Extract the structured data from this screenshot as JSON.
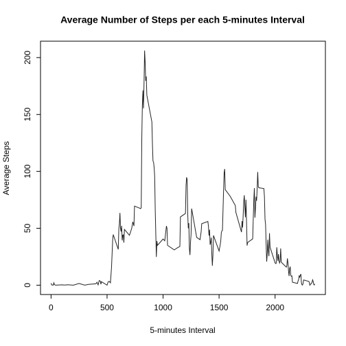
{
  "chart_data": {
    "type": "line",
    "title": "Average Number of Steps per each 5-minutes Interval",
    "xlabel": "5-minutes Interval",
    "ylabel": "Average Steps",
    "color": "#222222",
    "x": [
      0,
      5,
      10,
      15,
      20,
      25,
      30,
      40,
      100,
      110,
      135,
      145,
      200,
      250,
      300,
      335,
      400,
      410,
      420,
      430,
      440,
      445,
      450,
      500,
      505,
      510,
      520,
      530,
      540,
      550,
      555,
      600,
      605,
      610,
      615,
      620,
      625,
      630,
      635,
      640,
      645,
      650,
      655,
      700,
      720,
      730,
      740,
      745,
      800,
      805,
      810,
      815,
      820,
      825,
      830,
      835,
      840,
      845,
      850,
      855,
      900,
      905,
      910,
      915,
      920,
      925,
      930,
      935,
      940,
      945,
      950,
      1000,
      1015,
      1030,
      1035,
      1040,
      1100,
      1130,
      1150,
      1155,
      1200,
      1205,
      1210,
      1215,
      1220,
      1225,
      1230,
      1235,
      1240,
      1245,
      1250,
      1255,
      1300,
      1330,
      1340,
      1345,
      1400,
      1405,
      1410,
      1415,
      1420,
      1425,
      1430,
      1435,
      1440,
      1445,
      1450,
      1500,
      1510,
      1515,
      1520,
      1525,
      1530,
      1535,
      1540,
      1545,
      1550,
      1555,
      1600,
      1645,
      1650,
      1700,
      1705,
      1710,
      1715,
      1720,
      1725,
      1730,
      1735,
      1740,
      1745,
      1750,
      1755,
      1800,
      1805,
      1810,
      1815,
      1820,
      1825,
      1830,
      1835,
      1840,
      1845,
      1850,
      1855,
      1900,
      1905,
      1910,
      1915,
      1920,
      1925,
      1930,
      1935,
      1940,
      1945,
      1950,
      1955,
      2000,
      2005,
      2010,
      2015,
      2020,
      2025,
      2030,
      2035,
      2040,
      2045,
      2050,
      2055,
      2100,
      2105,
      2110,
      2115,
      2120,
      2125,
      2130,
      2135,
      2140,
      2145,
      2150,
      2155,
      2200,
      2205,
      2210,
      2215,
      2220,
      2225,
      2230,
      2235,
      2240,
      2245,
      2250,
      2255,
      2300,
      2305,
      2310,
      2315,
      2320,
      2325,
      2330,
      2335,
      2340,
      2345,
      2350,
      2355
    ],
    "values": [
      1.7,
      0.3,
      0.1,
      0.2,
      0.1,
      2.1,
      0.5,
      0,
      0.3,
      0.2,
      0.2,
      0.4,
      0,
      1.5,
      0,
      0.7,
      1.2,
      2.6,
      0.3,
      4.1,
      3.5,
      0.8,
      3.1,
      0,
      1.6,
      3.0,
      3.3,
      2.1,
      16,
      39.5,
      44.5,
      31.5,
      49.3,
      53.8,
      63.5,
      50,
      47.1,
      52.2,
      39.3,
      44,
      44.2,
      37.4,
      49,
      43.8,
      49.9,
      55.7,
      52,
      69.5,
      67.3,
      68.2,
      129.4,
      157.5,
      171.2,
      155.4,
      177.3,
      206.2,
      195.9,
      179.6,
      183.4,
      167,
      143.5,
      124,
      109.1,
      108.1,
      103.7,
      96,
      66.2,
      45.2,
      24.8,
      38.8,
      35,
      40.6,
      39,
      52,
      50,
      35,
      31,
      33,
      34,
      60,
      63,
      87.6,
      94.8,
      92.8,
      63,
      50,
      54.5,
      32.4,
      26.5,
      37.7,
      45,
      67.3,
      42,
      40,
      47,
      54,
      56,
      51.8,
      43.6,
      48.7,
      35.5,
      37.5,
      41.8,
      27.5,
      17.1,
      26.1,
      43.7,
      30,
      35.5,
      38.8,
      46,
      47.8,
      48.1,
      65.3,
      82.9,
      98.7,
      102.1,
      84,
      78,
      70,
      64,
      46.6,
      56.3,
      50.7,
      61.2,
      73.4,
      79,
      68.9,
      59.7,
      75.1,
      56.5,
      34.8,
      37.5,
      40.7,
      58,
      74.7,
      85.3,
      59.3,
      67.8,
      77.7,
      74.2,
      85.3,
      99.5,
      86.6,
      85.6,
      84.9,
      77.8,
      58,
      53.4,
      36.3,
      20.7,
      27.4,
      40,
      30.2,
      25.5,
      45.7,
      33.5,
      19.6,
      19,
      19.3,
      33.3,
      26.8,
      21.2,
      27.3,
      21.3,
      19.5,
      21.3,
      32.3,
      20.2,
      15.9,
      17.2,
      23.5,
      19.2,
      12.5,
      8,
      14.7,
      16.3,
      8.7,
      7.8,
      8.1,
      2.6,
      1.5,
      3.7,
      4.8,
      8.5,
      7.1,
      8.7,
      9.8,
      2.2,
      0.3,
      0.1,
      1.6,
      4.6,
      3.3,
      2.8,
      0,
      0.8,
      1,
      1.6,
      2.6,
      4.7,
      3.3,
      0.6,
      0.2,
      1.1
    ],
    "xlim": [
      -94.2,
      2449.2
    ],
    "xticks": [
      0,
      500,
      1000,
      1500,
      2000
    ],
    "ylim": [
      -8.2,
      214.4
    ],
    "yticks": [
      0,
      50,
      100,
      150,
      200
    ]
  }
}
